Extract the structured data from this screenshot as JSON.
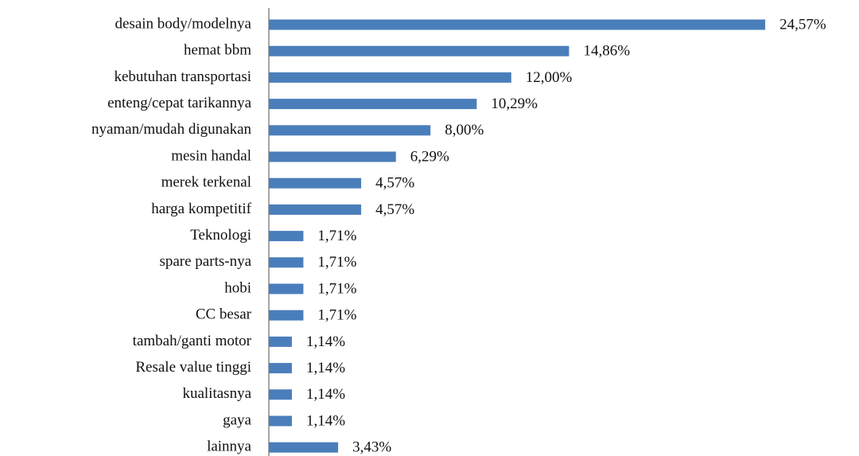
{
  "chart_data": {
    "type": "bar",
    "orientation": "horizontal",
    "categories": [
      "desain body/modelnya",
      "hemat bbm",
      "kebutuhan transportasi",
      "enteng/cepat tarikannya",
      "nyaman/mudah digunakan",
      "mesin handal",
      "merek terkenal",
      "harga kompetitif",
      "Teknologi",
      "spare parts-nya",
      "hobi",
      "CC besar",
      "tambah/ganti motor",
      "Resale value tinggi",
      "kualitasnya",
      "gaya",
      "lainnya"
    ],
    "values": [
      24.57,
      14.86,
      12.0,
      10.29,
      8.0,
      6.29,
      4.57,
      4.57,
      1.71,
      1.71,
      1.71,
      1.71,
      1.14,
      1.14,
      1.14,
      1.14,
      3.43
    ],
    "value_labels": [
      "24,57%",
      "14,86%",
      "12,00%",
      "10,29%",
      "8,00%",
      "6,29%",
      "4,57%",
      "4,57%",
      "1,71%",
      "1,71%",
      "1,71%",
      "1,71%",
      "1,14%",
      "1,14%",
      "1,14%",
      "1,14%",
      "3,43%"
    ],
    "color": "#4a7ebb"
  }
}
